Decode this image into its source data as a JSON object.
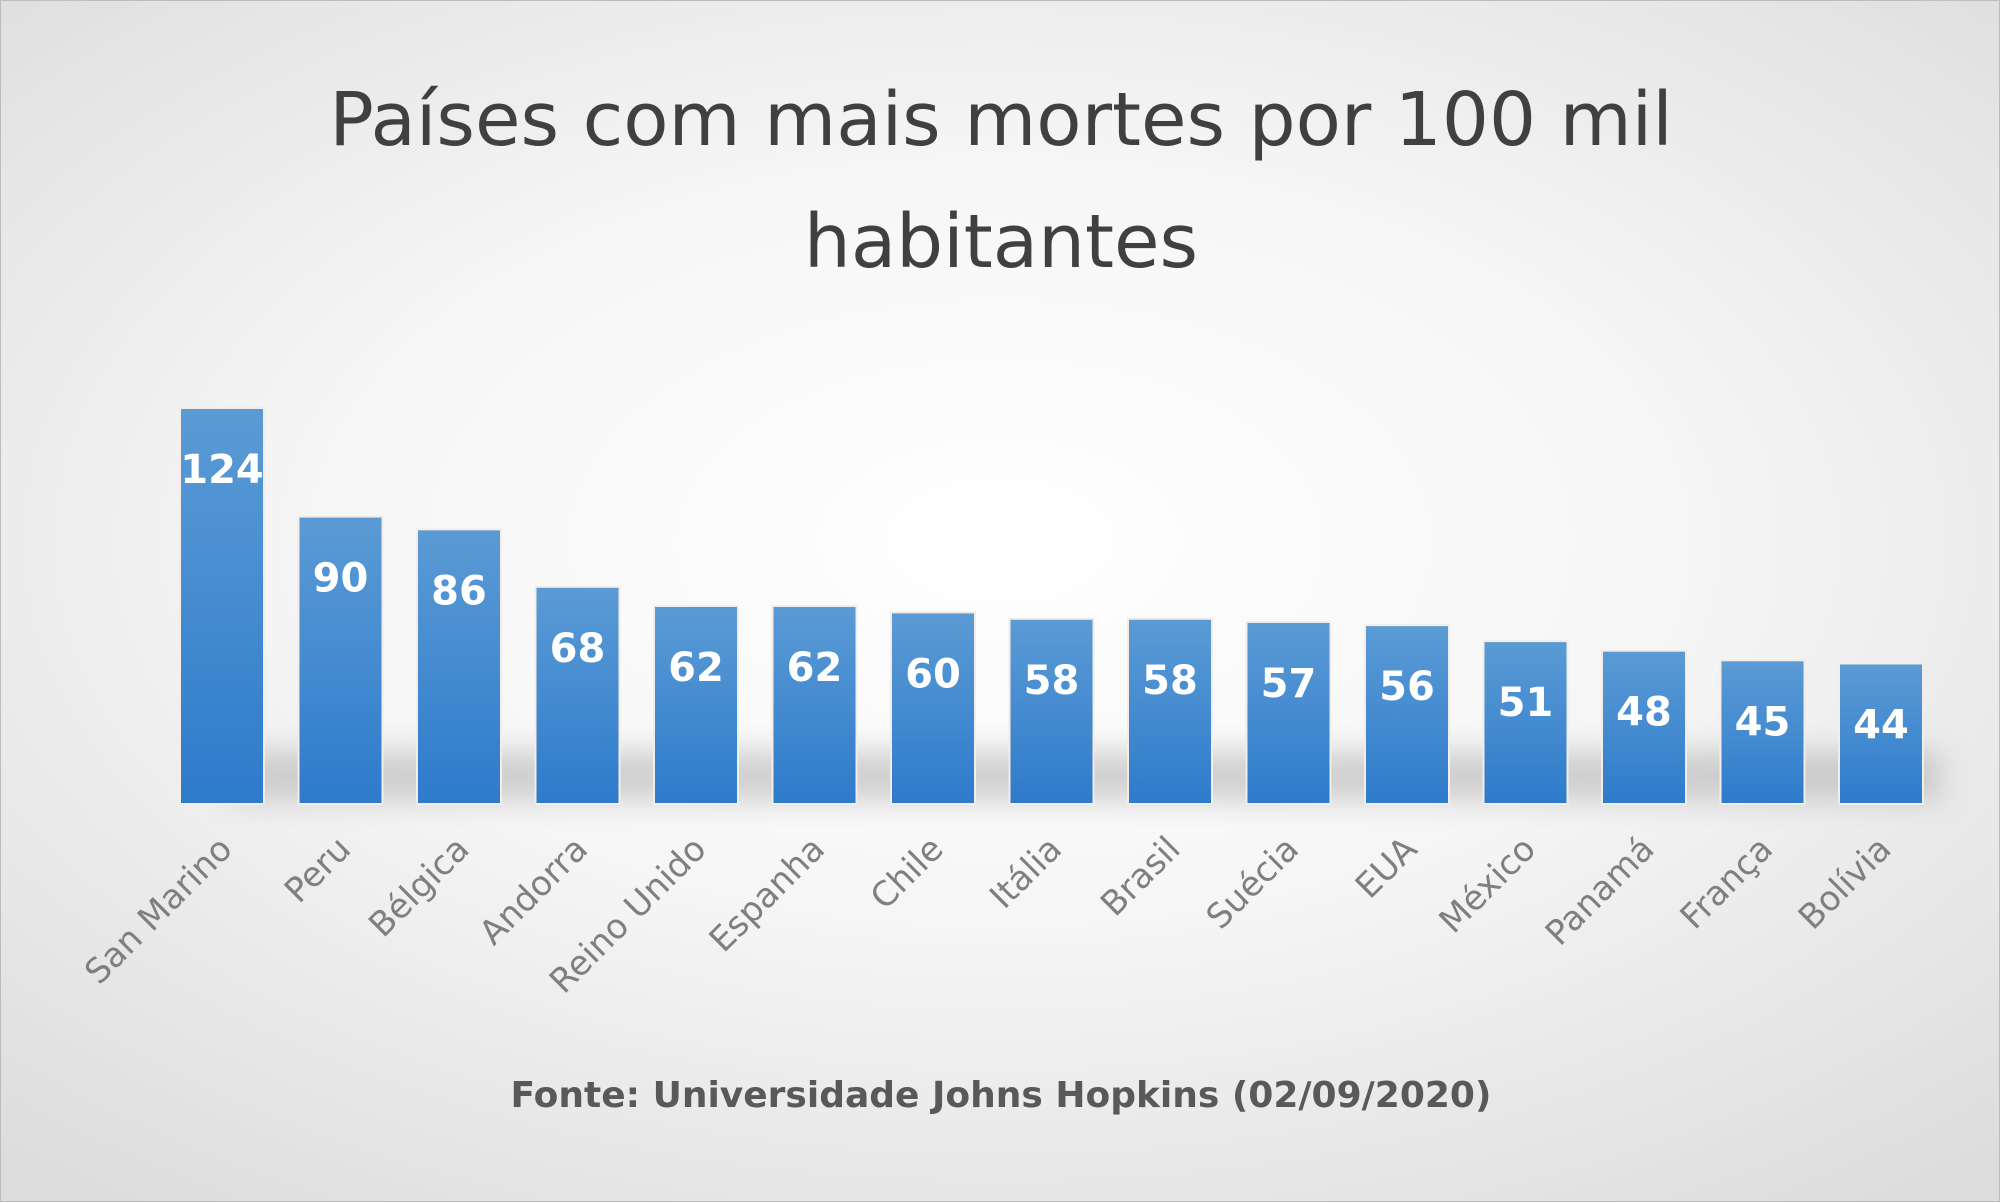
{
  "chart_data": {
    "type": "bar",
    "title_line1": "Países com mais mortes por 100 mil",
    "title_line2": "habitantes",
    "categories": [
      "San Marino",
      "Peru",
      "Bélgica",
      "Andorra",
      "Reino Unido",
      "Espanha",
      "Chile",
      "Itália",
      "Brasil",
      "Suécia",
      "EUA",
      "México",
      "Panamá",
      "França",
      "Bolívia"
    ],
    "values": [
      124,
      90,
      86,
      68,
      62,
      62,
      60,
      58,
      58,
      57,
      56,
      51,
      48,
      45,
      44
    ],
    "xlabel": "",
    "ylabel": "",
    "ylim": [
      0,
      124
    ],
    "grid": false,
    "legend": "none",
    "data_labels": "inside-end",
    "source": "Fonte: Universidade Johns Hopkins (02/09/2020)",
    "colors": {
      "bar_top": "#5b9bd5",
      "bar_bottom": "#2e7bcb",
      "label": "#ffffff",
      "axis_text": "#7f7f7f"
    }
  }
}
